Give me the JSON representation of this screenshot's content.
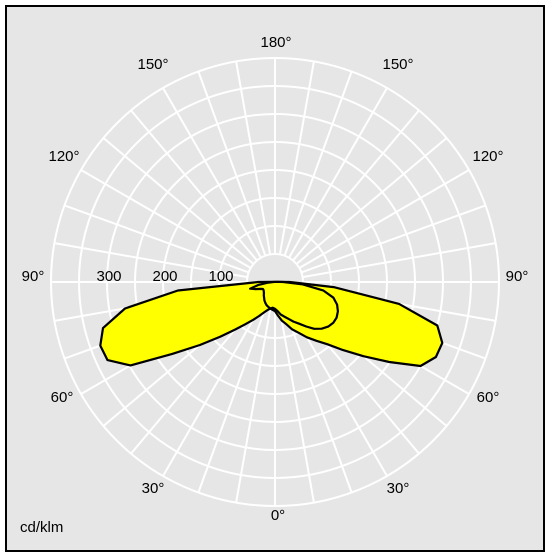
{
  "chart_data": {
    "type": "polar",
    "unit_label": "cd/klm",
    "radial_ticks": [
      100,
      200,
      300
    ],
    "rmax": 400,
    "angle_labels": {
      "top": "180°",
      "bottom": "0°",
      "left": [
        "150°",
        "120°",
        "90°",
        "60°",
        "30°"
      ],
      "right": [
        "150°",
        "120°",
        "90°",
        "60°",
        "30°"
      ]
    },
    "radial_labels": [
      "100",
      "200",
      "300"
    ],
    "grid": true,
    "fill_color": "#ffff00",
    "grid_color": "#ffffff",
    "background_color": "#e6e6e6",
    "series": [
      {
        "points": [
          [
            0,
            48
          ],
          [
            -5,
            46
          ],
          [
            -10,
            48
          ],
          [
            -15,
            52
          ],
          [
            -20,
            58
          ],
          [
            -25,
            67
          ],
          [
            -30,
            78
          ],
          [
            -35,
            92
          ],
          [
            -40,
            111
          ],
          [
            -45,
            138
          ],
          [
            -50,
            175
          ],
          [
            -55,
            224
          ],
          [
            -60,
            298
          ],
          [
            -65,
            330
          ],
          [
            -70,
            332
          ],
          [
            -75,
            318
          ],
          [
            -80,
            272
          ],
          [
            -85,
            174
          ],
          [
            -90,
            30
          ],
          [
            -95,
            4
          ],
          [
            95,
            4
          ],
          [
            90,
            15
          ],
          [
            85,
            50
          ],
          [
            80,
            88
          ],
          [
            75,
            108
          ],
          [
            70,
            118
          ],
          [
            65,
            124
          ],
          [
            60,
            127
          ],
          [
            55,
            127
          ],
          [
            50,
            124
          ],
          [
            45,
            118
          ],
          [
            40,
            109
          ],
          [
            35,
            97
          ],
          [
            30,
            86
          ],
          [
            25,
            78
          ],
          [
            20,
            70
          ],
          [
            15,
            64
          ],
          [
            10,
            59
          ],
          [
            5,
            52
          ]
        ]
      },
      {
        "points": [
          [
            0,
            52
          ],
          [
            -5,
            50
          ],
          [
            -10,
            48
          ],
          [
            -15,
            46
          ],
          [
            -20,
            44
          ],
          [
            -25,
            41
          ],
          [
            -30,
            38
          ],
          [
            -35,
            34
          ],
          [
            -40,
            31
          ],
          [
            -45,
            28
          ],
          [
            -50,
            26
          ],
          [
            -55,
            25
          ],
          [
            -60,
            25
          ],
          [
            -65,
            29
          ],
          [
            -70,
            37
          ],
          [
            -75,
            46
          ],
          [
            -80,
            30
          ],
          [
            -85,
            12
          ],
          [
            -90,
            3
          ],
          [
            95,
            4
          ],
          [
            90,
            26
          ],
          [
            85,
            105
          ],
          [
            80,
            225
          ],
          [
            75,
            300
          ],
          [
            70,
            318
          ],
          [
            65,
            317
          ],
          [
            60,
            300
          ],
          [
            55,
            249
          ],
          [
            50,
            206
          ],
          [
            45,
            172
          ],
          [
            40,
            145
          ],
          [
            35,
            128
          ],
          [
            30,
            114
          ],
          [
            25,
            100
          ],
          [
            20,
            90
          ],
          [
            15,
            78
          ],
          [
            10,
            70
          ],
          [
            5,
            60
          ]
        ]
      }
    ]
  }
}
